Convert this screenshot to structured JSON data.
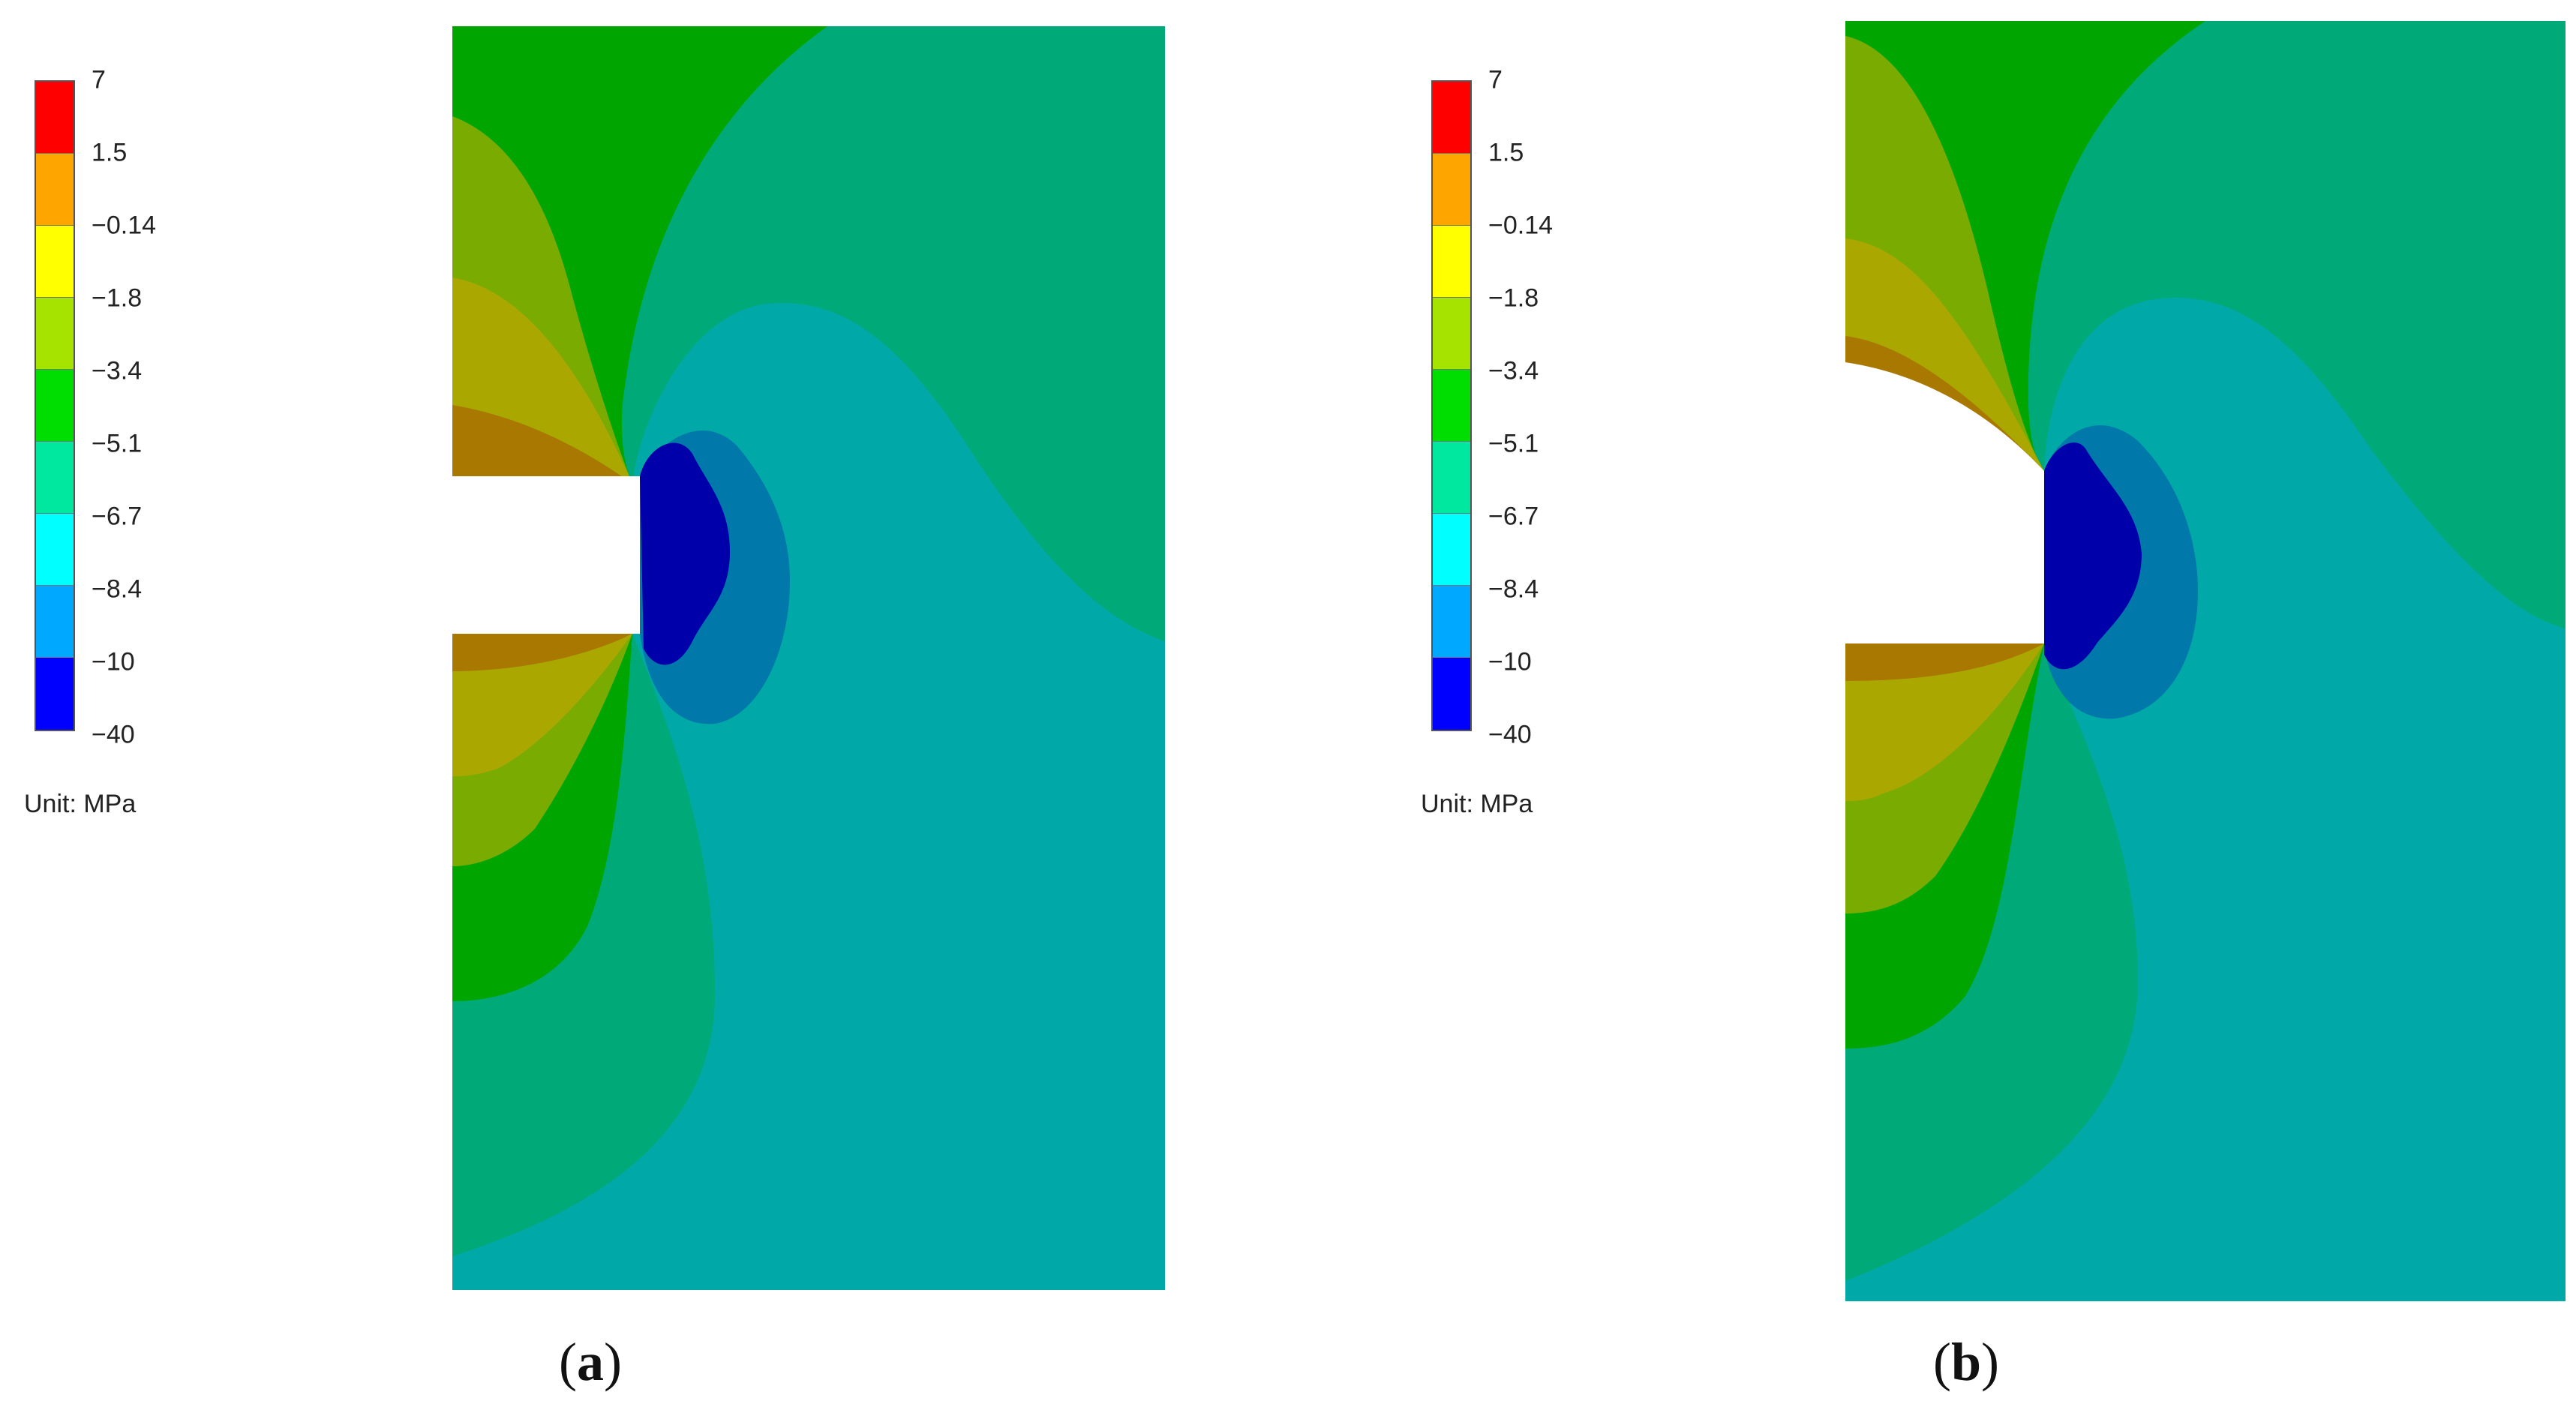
{
  "figure": {
    "panels": [
      {
        "id": "a",
        "caption_open": "(",
        "caption_letter": "a",
        "caption_close": ")",
        "legend": {
          "labels": [
            "7",
            "1.5",
            "−0.14",
            "−1.8",
            "−3.4",
            "−5.1",
            "−6.7",
            "−8.4",
            "−10",
            "−40"
          ],
          "unit": "Unit: MPa"
        }
      },
      {
        "id": "b",
        "caption_open": "(",
        "caption_letter": "b",
        "caption_close": ")",
        "legend": {
          "labels": [
            "7",
            "1.5",
            "−0.14",
            "−1.8",
            "−3.4",
            "−5.1",
            "−6.7",
            "−8.4",
            "−10",
            "−40"
          ],
          "unit": "Unit: MPa"
        }
      }
    ],
    "colors": {
      "band_1": "#ff0000",
      "band_2": "#ffa500",
      "band_3": "#ffff00",
      "band_4": "#a6e400",
      "band_5": "#00dd00",
      "band_6": "#00e8a0",
      "band_7": "#00ffff",
      "band_8": "#00a8ff",
      "band_9": "#0000ff",
      "contour_green": "#00a500",
      "contour_olive": "#7aab00",
      "contour_gold": "#aaa800",
      "contour_brown": "#a87800",
      "contour_teal_green": "#00aa78",
      "contour_teal": "#00a8a8",
      "contour_blue": "#0078aa",
      "contour_navy": "#0000aa"
    }
  }
}
